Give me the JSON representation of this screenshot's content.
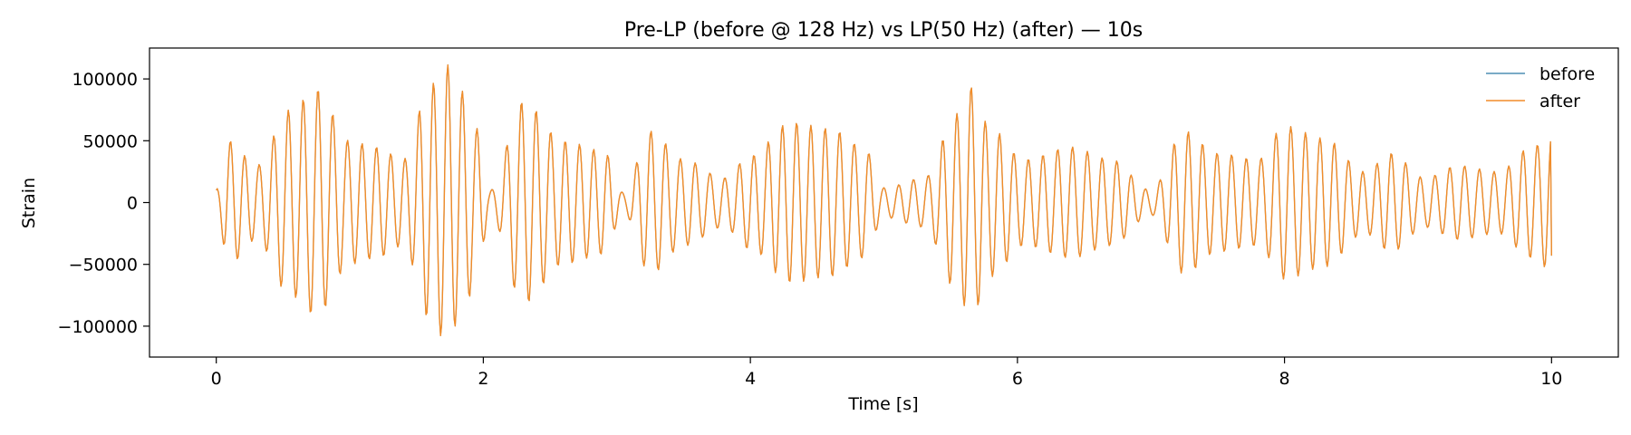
{
  "chart_data": {
    "type": "line",
    "title": "Pre-LP (before @ 128 Hz) vs LP(50 Hz) (after) — 10s",
    "xlabel": "Time [s]",
    "ylabel": "Strain",
    "xlim": [
      -0.5,
      10.5
    ],
    "ylim": [
      -125000,
      125000
    ],
    "xticks": [
      0,
      2,
      4,
      6,
      8,
      10
    ],
    "xtick_labels": [
      "0",
      "2",
      "4",
      "6",
      "8",
      "10"
    ],
    "yticks": [
      -100000,
      -50000,
      0,
      50000,
      100000
    ],
    "ytick_labels": [
      "−100000",
      "−50000",
      "0",
      "50000",
      "100000"
    ],
    "grid": false,
    "legend_position": "top-right",
    "carrier_frequency_hz": 9.2,
    "sample_rate_hz": 128,
    "duration_s": 10,
    "envelope": {
      "t": [
        0,
        0.1,
        0.3,
        0.55,
        0.75,
        1.0,
        1.2,
        1.4,
        1.6,
        1.72,
        1.85,
        1.95,
        2.05,
        2.3,
        2.6,
        2.9,
        3.05,
        3.25,
        3.5,
        3.8,
        4.0,
        4.3,
        4.6,
        4.85,
        5.0,
        5.3,
        5.55,
        5.65,
        5.8,
        6.05,
        6.4,
        6.7,
        7.0,
        7.25,
        7.5,
        7.8,
        8.0,
        8.3,
        8.6,
        8.8,
        9.05,
        9.3,
        9.6,
        9.85,
        10.0
      ],
      "amplitude": [
        12000,
        50000,
        30000,
        75000,
        92000,
        50000,
        45000,
        35000,
        95000,
        112000,
        90000,
        60000,
        10000,
        82000,
        50000,
        42000,
        8000,
        58000,
        35000,
        20000,
        38000,
        65000,
        60000,
        45000,
        12000,
        20000,
        72000,
        94000,
        60000,
        35000,
        45000,
        35000,
        10000,
        58000,
        40000,
        35000,
        62000,
        52000,
        25000,
        40000,
        20000,
        30000,
        25000,
        45000,
        55000
      ]
    },
    "series": [
      {
        "name": "before",
        "color": "#4f8fb3",
        "line_width": 1.2
      },
      {
        "name": "after",
        "color": "#f28c28",
        "line_width": 1.4
      }
    ]
  }
}
